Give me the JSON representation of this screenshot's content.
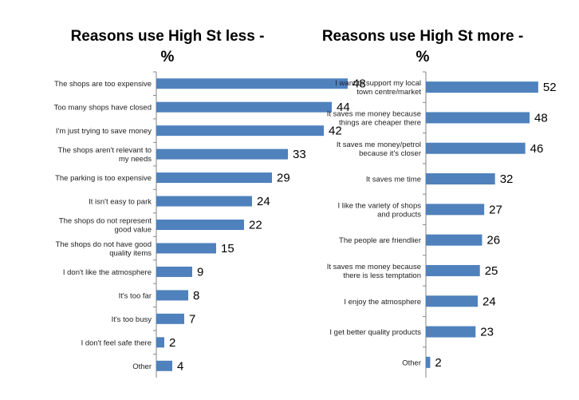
{
  "chart_data": [
    {
      "type": "bar",
      "orientation": "horizontal",
      "title_line1": "Reasons use High St less -",
      "title_line2": "%",
      "categories": [
        "The shops are too expensive",
        "Too many shops have closed",
        "I'm just trying to save money",
        "The shops aren't relevant to my needs",
        "The parking is too expensive",
        "It isn't easy to park",
        "The shops do not represent good value",
        "The shops do not have good quality items",
        "I don't like the atmosphere",
        "It's too far",
        "It's too busy",
        "I don't feel safe there",
        "Other"
      ],
      "values": [
        48,
        44,
        42,
        33,
        29,
        24,
        22,
        15,
        9,
        8,
        7,
        2,
        4
      ],
      "xlim": [
        0,
        50
      ],
      "bar_color": "#4f81bd",
      "axis_color": "#868686"
    },
    {
      "type": "bar",
      "orientation": "horizontal",
      "title_line1": "Reasons use High St more -",
      "title_line2": "%",
      "categories": [
        "I want to support my local town centre/market",
        "It saves me money because things are cheaper there",
        "It saves me money/petrol because it's closer",
        "It saves me time",
        "I like the variety of shops and products",
        "The people are friendlier",
        "It saves me money because there is less temptation",
        "I enjoy the atmosphere",
        "I get better quality products",
        "Other"
      ],
      "values": [
        52,
        48,
        46,
        32,
        27,
        26,
        25,
        24,
        23,
        2
      ],
      "xlim": [
        0,
        55
      ],
      "bar_color": "#4f81bd",
      "axis_color": "#868686"
    }
  ]
}
